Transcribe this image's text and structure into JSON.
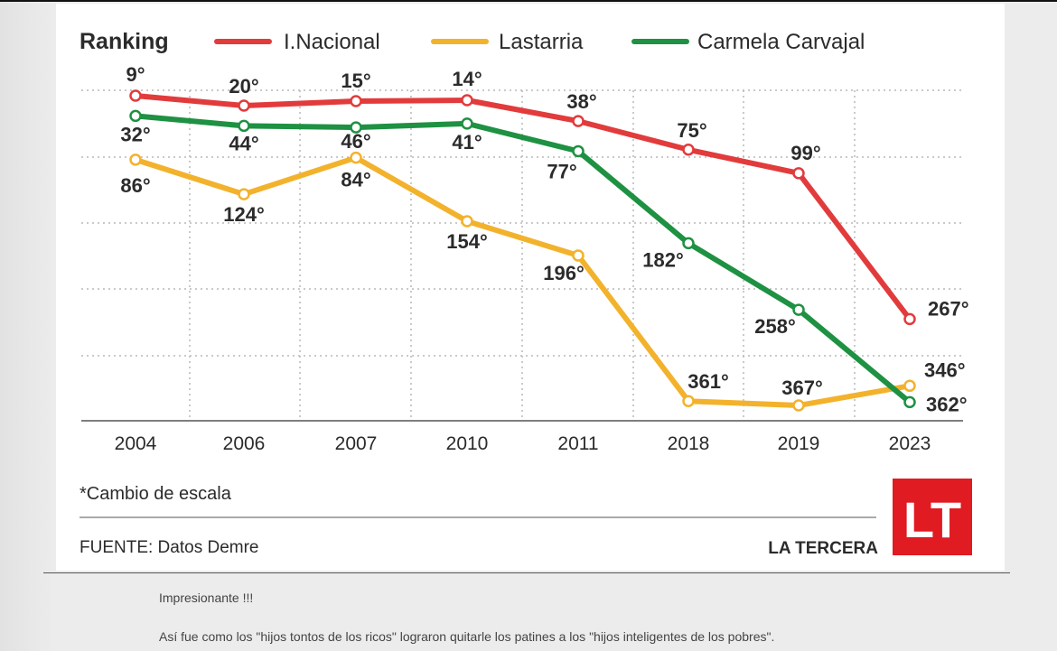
{
  "chart_data": {
    "type": "line",
    "title": "Ranking",
    "categories": [
      "2004",
      "2006",
      "2007",
      "2010",
      "2011",
      "2018",
      "2019",
      "2023"
    ],
    "y_scale": "rank (inverted, non-linear)",
    "grid": true,
    "legend_position": "top",
    "series": [
      {
        "name": "I.Nacional",
        "color": "#e23b3c",
        "values": [
          9,
          20,
          15,
          14,
          38,
          75,
          99,
          267
        ],
        "labels": [
          "9°",
          "20°",
          "15°",
          "14°",
          "38°",
          "75°",
          "99°",
          "267°"
        ]
      },
      {
        "name": "Lastarria",
        "color": "#f3b22c",
        "values": [
          86,
          124,
          84,
          154,
          196,
          361,
          367,
          346
        ],
        "labels": [
          "86°",
          "124°",
          "84°",
          "154°",
          "196°",
          "361°",
          "367°",
          "346°"
        ]
      },
      {
        "name": "Carmela Carvajal",
        "color": "#1e9142",
        "values": [
          32,
          44,
          46,
          41,
          77,
          182,
          258,
          362
        ],
        "labels": [
          "32°",
          "44°",
          "46°",
          "41°",
          "77°",
          "182°",
          "258°",
          "362°"
        ]
      }
    ],
    "note": "*Cambio de escala",
    "source": "FUENTE: Datos Demre",
    "brand": "LA TERCERA",
    "logo": "LT"
  },
  "comments": [
    "Impresionante !!!",
    "Así fue como los \"hijos tontos de los ricos\" lograron quitarle los patines a los \"hijos inteligentes de los pobres\"."
  ]
}
